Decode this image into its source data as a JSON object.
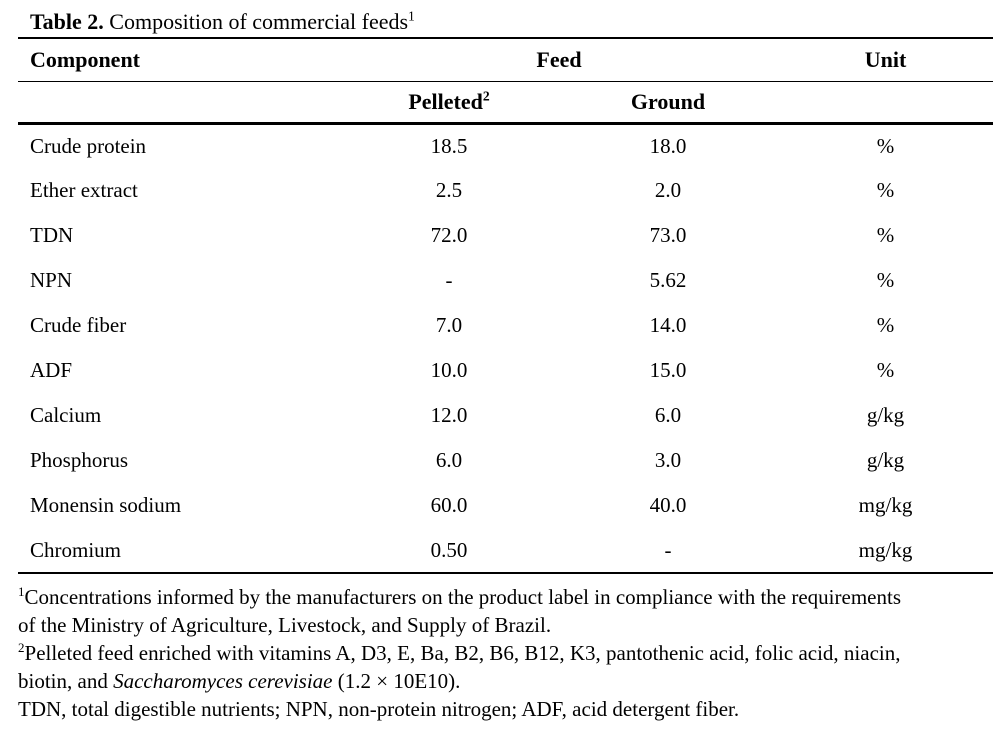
{
  "title": {
    "label": "Table 2.",
    "text": " Composition of commercial feeds",
    "sup": "1"
  },
  "table": {
    "header": {
      "component": "Component",
      "feed": "Feed",
      "unit": "Unit"
    },
    "subheader": {
      "pelleted": "Pelleted",
      "pelleted_sup": "2",
      "ground": "Ground"
    },
    "rows": [
      {
        "component": "Crude protein",
        "pelleted": "18.5",
        "ground": "18.0",
        "unit": "%"
      },
      {
        "component": "Ether extract",
        "pelleted": "2.5",
        "ground": "2.0",
        "unit": "%"
      },
      {
        "component": "TDN",
        "pelleted": "72.0",
        "ground": "73.0",
        "unit": "%"
      },
      {
        "component": "NPN",
        "pelleted": "-",
        "ground": "5.62",
        "unit": "%"
      },
      {
        "component": "Crude fiber",
        "pelleted": "7.0",
        "ground": "14.0",
        "unit": "%"
      },
      {
        "component": "ADF",
        "pelleted": "10.0",
        "ground": "15.0",
        "unit": "%"
      },
      {
        "component": "Calcium",
        "pelleted": "12.0",
        "ground": "6.0",
        "unit": "g/kg"
      },
      {
        "component": "Phosphorus",
        "pelleted": "6.0",
        "ground": "3.0",
        "unit": "g/kg"
      },
      {
        "component": "Monensin sodium",
        "pelleted": "60.0",
        "ground": "40.0",
        "unit": "mg/kg"
      },
      {
        "component": "Chromium",
        "pelleted": "0.50",
        "ground": "-",
        "unit": "mg/kg"
      }
    ]
  },
  "footnotes": {
    "fn1": {
      "sup": "1",
      "line1": "Concentrations informed by the manufacturers on the product label in compliance with the requirements",
      "line2": "of the Ministry of Agriculture, Livestock, and Supply of Brazil."
    },
    "fn2": {
      "sup": "2",
      "line1": "Pelleted feed enriched with vitamins A, D3, E, Ba, B2, B6, B12, K3, pantothenic acid, folic acid, niacin,",
      "line2_pre": "biotin, and ",
      "line2_italic": "Saccharomyces cerevisiae",
      "line2_post": " (1.2 × 10E10)."
    },
    "fn3": {
      "text": "TDN, total digestible nutrients; NPN, non-protein nitrogen; ADF, acid detergent fiber."
    }
  },
  "colors": {
    "background": "#ffffff",
    "text": "#000000",
    "rule": "#000000"
  }
}
